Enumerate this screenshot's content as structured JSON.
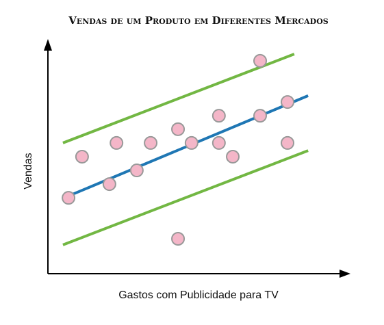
{
  "chart_data": {
    "type": "scatter",
    "title": "Vendas de um Produto em Diferentes Mercados",
    "xlabel": "Gastos com Publicidade para TV",
    "ylabel": "Vendas",
    "xlim": [
      0,
      100
    ],
    "ylim": [
      0,
      100
    ],
    "color": "#f4b6c8",
    "x": [
      7,
      11.6,
      20.9,
      23.3,
      30.2,
      34.9,
      44.2,
      44.2,
      48.8,
      58.1,
      58.1,
      62.8,
      72.1,
      72.1,
      81.4,
      81.4
    ],
    "values": [
      32.6,
      50.3,
      38.5,
      56.2,
      44.4,
      56.2,
      62.1,
      15,
      56.2,
      67.9,
      56.2,
      50.3,
      67.9,
      91.5,
      73.8,
      56.2
    ],
    "lines": [
      {
        "color": "#1f77b4",
        "x": [
          5.1,
          88.4
        ],
        "values": [
          32.4,
          76.5
        ]
      },
      {
        "color": "#72b743",
        "x": [
          5.1,
          83.7
        ],
        "values": [
          56.2,
          94.4
        ]
      },
      {
        "color": "#72b743",
        "x": [
          5.1,
          88.4
        ],
        "values": [
          12.4,
          52.9
        ]
      }
    ]
  }
}
